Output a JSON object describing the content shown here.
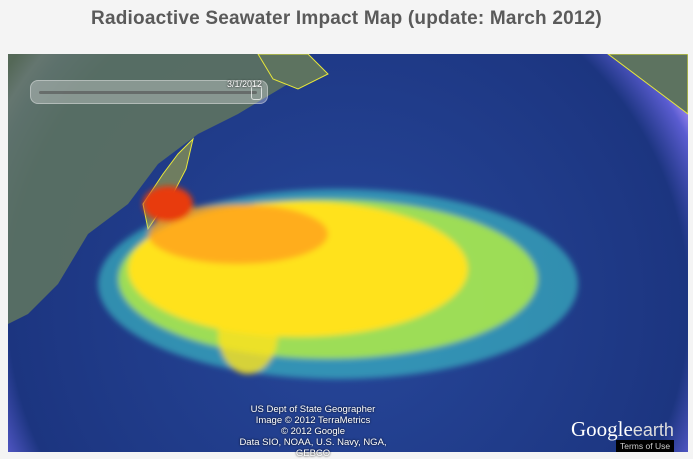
{
  "title": "Radioactive Seawater Impact Map (update: March 2012)",
  "slider": {
    "date_label": "3/1/2012",
    "position_fraction": 1.0
  },
  "credits": [
    "US Dept of State Geographer",
    "Image © 2012 TerraMetrics",
    "© 2012 Google",
    "Data SIO, NOAA, U.S. Navy, NGA, GEBCO"
  ],
  "logo": {
    "brand": "Google",
    "product": "earth"
  },
  "terms_link": "Terms of Use",
  "colors": {
    "ocean": "#1f3a86",
    "halo": "#8a78e8",
    "coastline": "#e8e83a",
    "plume_high": "#e83a10",
    "plume_mid": "#ffe21a",
    "plume_low": "#3fd3d0"
  }
}
